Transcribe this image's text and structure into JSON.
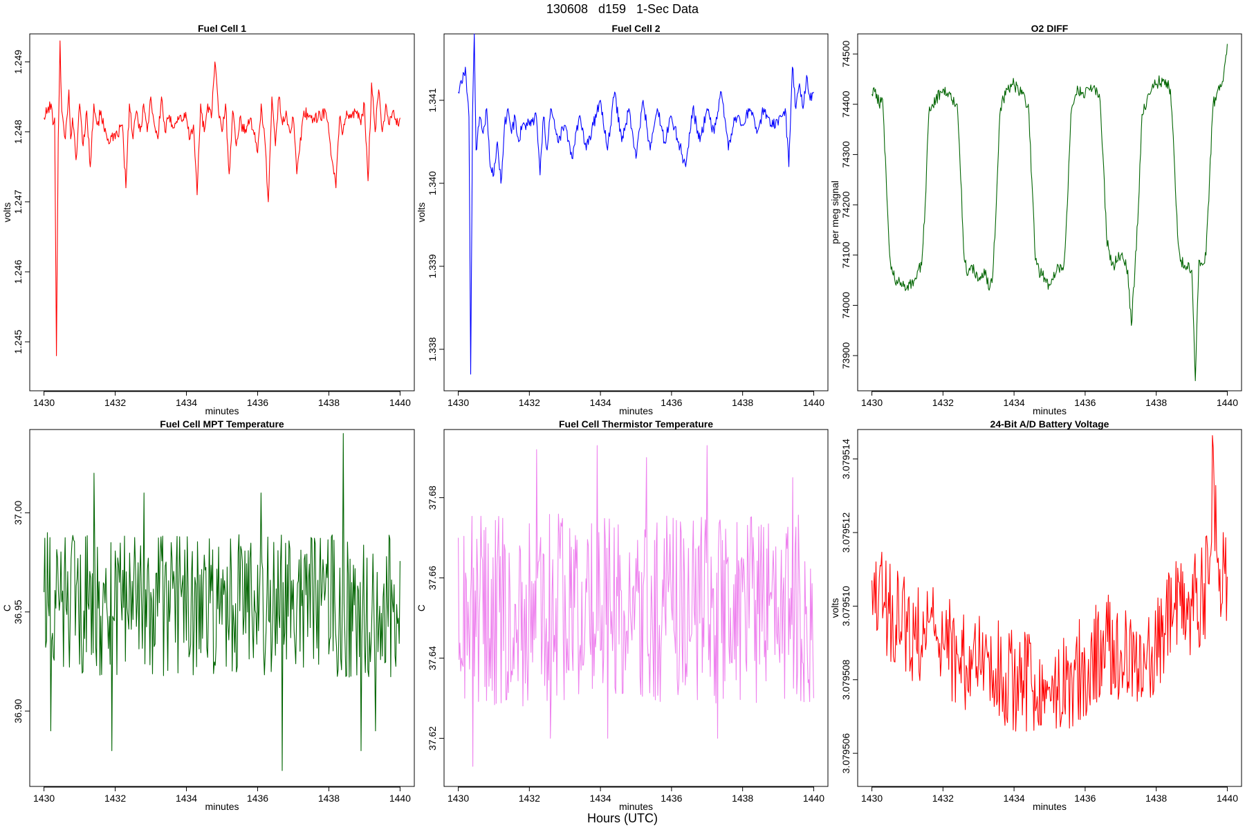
{
  "page": {
    "title": "130608   d159   1-Sec Data",
    "footer_label": "Hours (UTC)"
  },
  "chart_data": [
    {
      "type": "line",
      "title": "Fuel Cell 1",
      "xlabel": "minutes",
      "ylabel": "volts",
      "xlim": [
        1429.6,
        1440.4
      ],
      "ylim": [
        1.2443,
        1.2494
      ],
      "x_ticks": [
        1430,
        1432,
        1434,
        1436,
        1438,
        1440
      ],
      "y_ticks": [
        1.245,
        1.246,
        1.247,
        1.248,
        1.249
      ],
      "y_tick_labels": [
        "1.245",
        "1.246",
        "1.247",
        "1.248",
        "1.249"
      ],
      "color": "#ff0000",
      "series": [
        {
          "x": [
            1430.0,
            1430.1,
            1430.2,
            1430.25,
            1430.3,
            1430.35,
            1430.4,
            1430.45,
            1430.5,
            1430.55,
            1430.6,
            1430.7,
            1430.75,
            1430.8,
            1430.9,
            1431.0,
            1431.1,
            1431.2,
            1431.3,
            1431.35,
            1431.4,
            1431.5,
            1431.6,
            1431.7,
            1431.8,
            1432.0,
            1432.2,
            1432.3,
            1432.4,
            1432.5,
            1432.6,
            1432.7,
            1432.8,
            1432.9,
            1433.0,
            1433.1,
            1433.2,
            1433.3,
            1433.4,
            1433.5,
            1433.6,
            1433.8,
            1434.0,
            1434.1,
            1434.2,
            1434.3,
            1434.4,
            1434.5,
            1434.6,
            1434.7,
            1434.8,
            1434.9,
            1435.0,
            1435.1,
            1435.2,
            1435.3,
            1435.4,
            1435.5,
            1435.6,
            1435.8,
            1436.0,
            1436.1,
            1436.2,
            1436.3,
            1436.4,
            1436.5,
            1436.6,
            1436.7,
            1436.8,
            1436.9,
            1437.0,
            1437.1,
            1437.3,
            1437.5,
            1437.7,
            1437.9,
            1438.0,
            1438.2,
            1438.3,
            1438.4,
            1438.5,
            1438.6,
            1438.8,
            1438.9,
            1439.0,
            1439.1,
            1439.2,
            1439.3,
            1439.4,
            1439.5,
            1439.6,
            1439.7,
            1439.8,
            1439.9,
            1440.0
          ],
          "y": [
            1.2482,
            1.2483,
            1.2484,
            1.2481,
            1.2482,
            1.2448,
            1.2479,
            1.2493,
            1.2483,
            1.2481,
            1.2479,
            1.2486,
            1.2479,
            1.2482,
            1.2476,
            1.2484,
            1.2478,
            1.2483,
            1.2475,
            1.248,
            1.2484,
            1.2481,
            1.2483,
            1.248,
            1.2479,
            1.2479,
            1.2481,
            1.2472,
            1.2484,
            1.2479,
            1.2483,
            1.248,
            1.2484,
            1.248,
            1.2485,
            1.2481,
            1.2479,
            1.2485,
            1.248,
            1.2482,
            1.2481,
            1.2482,
            1.2482,
            1.2479,
            1.2481,
            1.2471,
            1.2484,
            1.248,
            1.2484,
            1.2482,
            1.249,
            1.2483,
            1.248,
            1.2484,
            1.2474,
            1.2483,
            1.2478,
            1.2482,
            1.248,
            1.2482,
            1.2477,
            1.2484,
            1.2479,
            1.247,
            1.2485,
            1.2478,
            1.2485,
            1.2481,
            1.2483,
            1.248,
            1.2482,
            1.2474,
            1.2483,
            1.2482,
            1.2482,
            1.2483,
            1.248,
            1.2472,
            1.2482,
            1.248,
            1.2483,
            1.2482,
            1.2483,
            1.2481,
            1.2484,
            1.2473,
            1.2487,
            1.248,
            1.2486,
            1.248,
            1.2484,
            1.2481,
            1.2483,
            1.2481,
            1.2482
          ]
        }
      ]
    },
    {
      "type": "line",
      "title": "Fuel Cell 2",
      "xlabel": "minutes",
      "ylabel": "volts",
      "xlim": [
        1429.6,
        1440.4
      ],
      "ylim": [
        1.3375,
        1.3418
      ],
      "x_ticks": [
        1430,
        1432,
        1434,
        1436,
        1438,
        1440
      ],
      "y_ticks": [
        1.338,
        1.339,
        1.34,
        1.341
      ],
      "y_tick_labels": [
        "1.338",
        "1.339",
        "1.340",
        "1.341"
      ],
      "color": "#0000ff",
      "series": [
        {
          "x": [
            1430.0,
            1430.1,
            1430.2,
            1430.3,
            1430.35,
            1430.4,
            1430.45,
            1430.5,
            1430.6,
            1430.7,
            1430.8,
            1430.9,
            1431.0,
            1431.1,
            1431.2,
            1431.3,
            1431.4,
            1431.5,
            1431.6,
            1431.7,
            1431.8,
            1432.0,
            1432.2,
            1432.3,
            1432.4,
            1432.5,
            1432.6,
            1432.8,
            1433.0,
            1433.2,
            1433.4,
            1433.6,
            1433.8,
            1434.0,
            1434.2,
            1434.4,
            1434.6,
            1434.8,
            1435.0,
            1435.2,
            1435.4,
            1435.6,
            1435.8,
            1436.0,
            1436.2,
            1436.4,
            1436.6,
            1436.8,
            1437.0,
            1437.2,
            1437.4,
            1437.6,
            1437.8,
            1438.0,
            1438.2,
            1438.4,
            1438.6,
            1438.8,
            1439.0,
            1439.2,
            1439.3,
            1439.4,
            1439.5,
            1439.6,
            1439.7,
            1439.8,
            1439.9,
            1440.0
          ],
          "y": [
            1.3411,
            1.3412,
            1.3414,
            1.3408,
            1.3377,
            1.3408,
            1.3418,
            1.3404,
            1.3408,
            1.3406,
            1.3409,
            1.3402,
            1.3401,
            1.3405,
            1.34,
            1.3407,
            1.3409,
            1.3406,
            1.3408,
            1.3405,
            1.3407,
            1.3407,
            1.3408,
            1.3401,
            1.3408,
            1.3404,
            1.3409,
            1.3405,
            1.3407,
            1.3403,
            1.3408,
            1.3404,
            1.3407,
            1.341,
            1.3404,
            1.3411,
            1.3405,
            1.3409,
            1.3403,
            1.341,
            1.3404,
            1.3409,
            1.3405,
            1.3408,
            1.3405,
            1.3402,
            1.3409,
            1.3405,
            1.3409,
            1.3406,
            1.3411,
            1.3404,
            1.3408,
            1.3407,
            1.3409,
            1.3406,
            1.3409,
            1.3407,
            1.3407,
            1.3409,
            1.3402,
            1.3414,
            1.3409,
            1.3412,
            1.3409,
            1.3413,
            1.341,
            1.3411
          ]
        }
      ]
    },
    {
      "type": "line",
      "title": "O2 DIFF",
      "xlabel": "minutes",
      "ylabel": "per meg signal",
      "xlim": [
        1429.6,
        1440.4
      ],
      "ylim": [
        73830,
        74540
      ],
      "x_ticks": [
        1430,
        1432,
        1434,
        1436,
        1438,
        1440
      ],
      "y_ticks": [
        73900,
        74000,
        74100,
        74200,
        74300,
        74400,
        74500
      ],
      "y_tick_labels": [
        "73900",
        "74000",
        "74100",
        "74200",
        "74300",
        "74400",
        "74500"
      ],
      "color": "#006400",
      "series": [
        {
          "x": [
            1430.0,
            1430.1,
            1430.2,
            1430.3,
            1430.4,
            1430.5,
            1430.6,
            1430.7,
            1430.8,
            1431.0,
            1431.2,
            1431.4,
            1431.5,
            1431.6,
            1431.7,
            1431.8,
            1432.0,
            1432.2,
            1432.4,
            1432.5,
            1432.6,
            1432.7,
            1432.8,
            1433.0,
            1433.2,
            1433.3,
            1433.4,
            1433.5,
            1433.6,
            1433.7,
            1433.8,
            1434.0,
            1434.2,
            1434.4,
            1434.5,
            1434.6,
            1434.7,
            1434.8,
            1435.0,
            1435.2,
            1435.4,
            1435.5,
            1435.6,
            1435.7,
            1435.8,
            1436.0,
            1436.2,
            1436.4,
            1436.5,
            1436.6,
            1436.7,
            1436.8,
            1437.0,
            1437.2,
            1437.3,
            1437.4,
            1437.5,
            1437.6,
            1437.8,
            1438.0,
            1438.2,
            1438.4,
            1438.5,
            1438.6,
            1438.7,
            1438.8,
            1439.0,
            1439.1,
            1439.2,
            1439.3,
            1439.4,
            1439.5,
            1439.6,
            1439.7,
            1439.8,
            1439.9,
            1440.0
          ],
          "y": [
            74420,
            74430,
            74400,
            74410,
            74260,
            74100,
            74060,
            74050,
            74040,
            74040,
            74050,
            74080,
            74200,
            74380,
            74400,
            74410,
            74430,
            74420,
            74400,
            74250,
            74090,
            74060,
            74080,
            74050,
            74070,
            74030,
            74060,
            74200,
            74380,
            74410,
            74430,
            74440,
            74420,
            74400,
            74250,
            74090,
            74070,
            74060,
            74040,
            74070,
            74080,
            74200,
            74380,
            74410,
            74430,
            74420,
            74430,
            74420,
            74300,
            74140,
            74090,
            74080,
            74100,
            74070,
            73960,
            74070,
            74200,
            74380,
            74420,
            74440,
            74450,
            74430,
            74300,
            74140,
            74090,
            74080,
            74070,
            73850,
            74090,
            74080,
            74100,
            74250,
            74400,
            74420,
            74440,
            74460,
            74520
          ]
        }
      ]
    },
    {
      "type": "line",
      "title": "Fuel Cell MPT Temperature",
      "xlabel": "minutes",
      "ylabel": "C",
      "xlim": [
        1429.6,
        1440.4
      ],
      "ylim": [
        36.862,
        37.042
      ],
      "x_ticks": [
        1430,
        1432,
        1434,
        1436,
        1438,
        1440
      ],
      "y_ticks": [
        36.9,
        36.95,
        37.0
      ],
      "y_tick_labels": [
        "36.90",
        "36.95",
        "37.00"
      ],
      "color": "#006400",
      "noise": {
        "seed": 11,
        "points": 420,
        "center": 36.953,
        "amplitude": 0.036
      },
      "series": [
        {
          "x": [
            1430.0,
            1430.1,
            1430.2,
            1431.4,
            1431.9,
            1432.8,
            1436.1,
            1436.7,
            1438.4,
            1438.9,
            1439.3,
            1439.8
          ],
          "y": [
            36.96,
            36.99,
            36.89,
            37.02,
            36.88,
            37.01,
            37.01,
            36.87,
            37.04,
            36.88,
            36.89,
            36.95
          ]
        }
      ]
    },
    {
      "type": "line",
      "title": "Fuel Cell Thermistor Temperature",
      "xlabel": "minutes",
      "ylabel": "C",
      "xlim": [
        1429.6,
        1440.4
      ],
      "ylim": [
        37.608,
        37.697
      ],
      "x_ticks": [
        1430,
        1432,
        1434,
        1436,
        1438,
        1440
      ],
      "y_ticks": [
        37.62,
        37.64,
        37.66,
        37.68
      ],
      "y_tick_labels": [
        "37.62",
        "37.64",
        "37.66",
        "37.68"
      ],
      "color": "#ee82ee",
      "noise": {
        "seed": 23,
        "points": 440,
        "center": 37.652,
        "amplitude": 0.024
      },
      "series": [
        {
          "x": [
            1430.0,
            1430.1,
            1430.4,
            1432.2,
            1432.6,
            1433.9,
            1434.2,
            1435.3,
            1437.0,
            1437.3,
            1439.4,
            1440.0
          ],
          "y": [
            37.67,
            37.64,
            37.613,
            37.692,
            37.62,
            37.693,
            37.62,
            37.69,
            37.693,
            37.62,
            37.685,
            37.63
          ]
        }
      ]
    },
    {
      "type": "line",
      "title": "24-Bit A/D Battery Voltage",
      "xlabel": "minutes",
      "ylabel": "volts",
      "xlim": [
        1429.6,
        1440.4
      ],
      "ylim": [
        3.0795051,
        3.0795148
      ],
      "x_ticks": [
        1430,
        1432,
        1434,
        1436,
        1438,
        1440
      ],
      "y_ticks": [
        3.079506,
        3.079508,
        3.07951,
        3.079512,
        3.079514
      ],
      "y_tick_labels": [
        "3.079506",
        "3.079508",
        "3.079510",
        "3.079512",
        "3.079514"
      ],
      "color": "#ff0000",
      "noise": {
        "seed": 37,
        "points": 430,
        "center": 3.0795092,
        "amplitude": 1.4e-06
      },
      "series": [
        {
          "x": [
            1430.0,
            1430.5,
            1431.0,
            1431.5,
            1432.0,
            1432.5,
            1433.0,
            1433.5,
            1434.0,
            1434.5,
            1435.0,
            1435.5,
            1436.0,
            1436.5,
            1437.0,
            1437.5,
            1438.0,
            1438.5,
            1439.0,
            1439.3,
            1439.5,
            1439.6,
            1439.7,
            1439.8,
            1439.9,
            1440.0
          ],
          "y": [
            3.0795107,
            3.0795098,
            3.0795093,
            3.0795094,
            3.079509,
            3.0795086,
            3.0795085,
            3.0795083,
            3.079508,
            3.0795079,
            3.0795078,
            3.079508,
            3.0795084,
            3.079509,
            3.0795088,
            3.0795083,
            3.079509,
            3.0795098,
            3.07951,
            3.0795104,
            3.0795106,
            3.0795143,
            3.0795115,
            3.079511,
            3.0795112,
            3.0795108
          ]
        }
      ]
    }
  ]
}
